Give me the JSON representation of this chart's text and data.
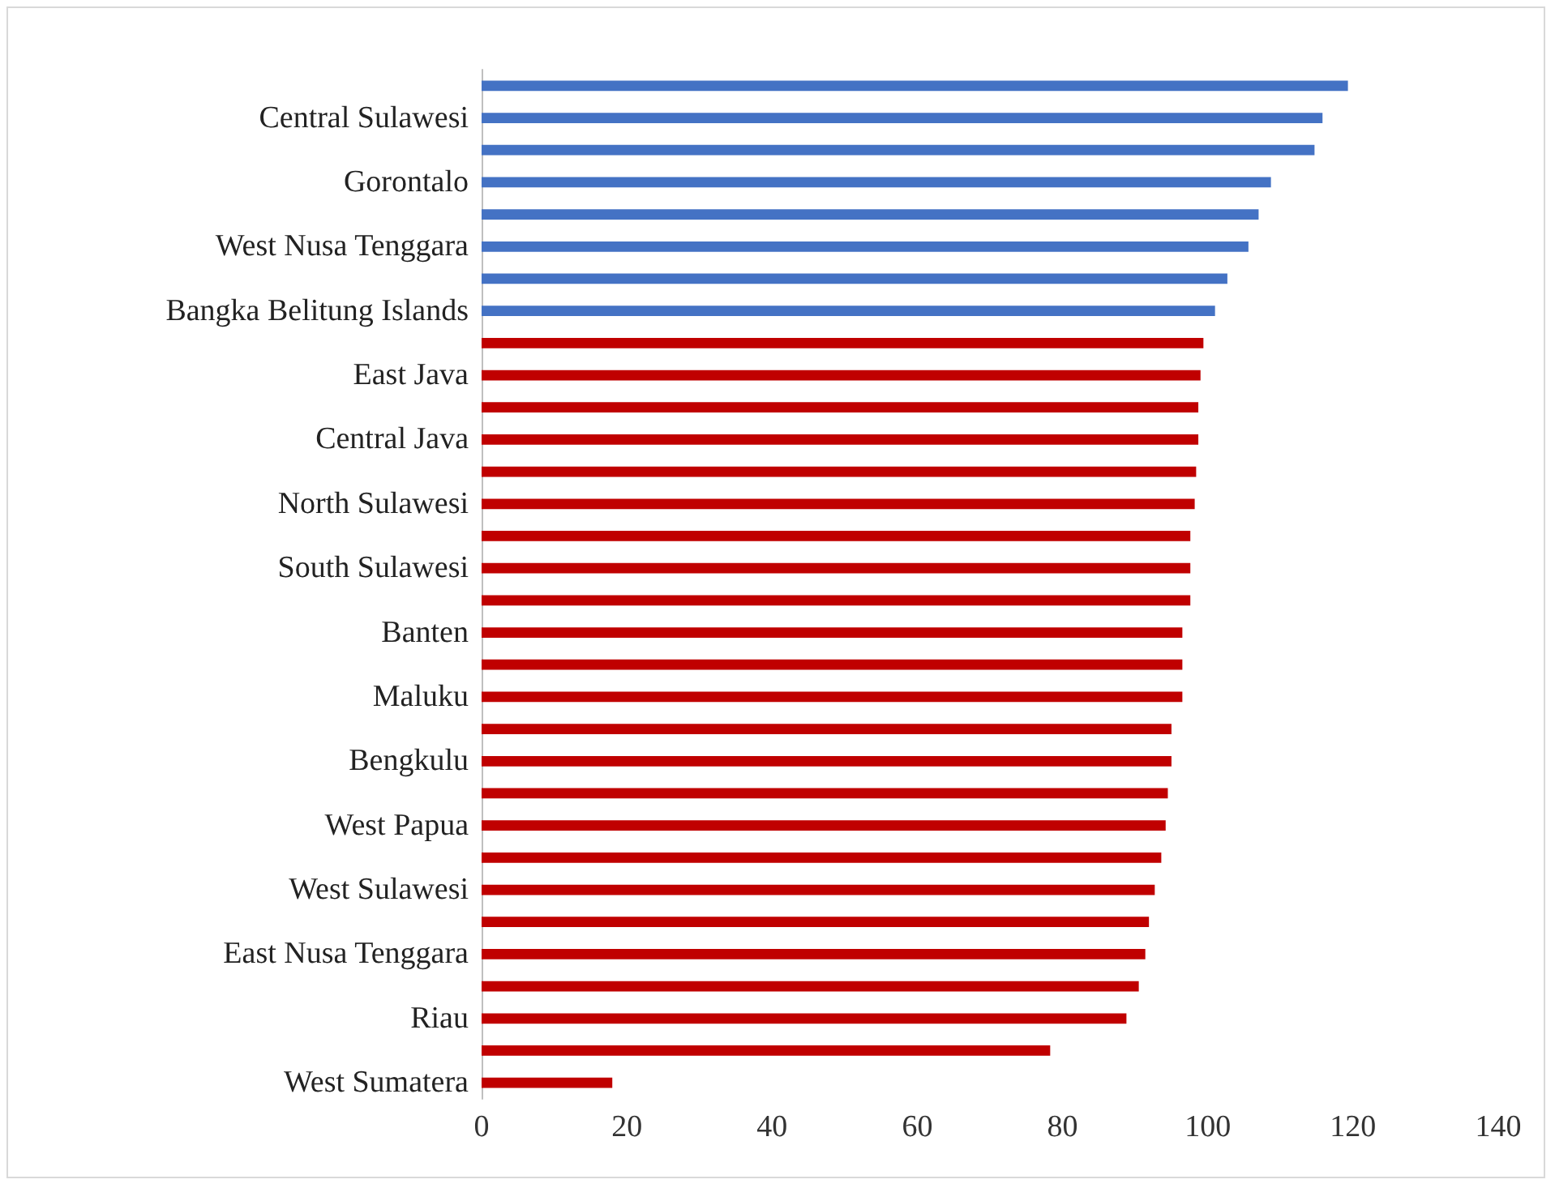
{
  "chart_data": {
    "type": "bar",
    "orientation": "horizontal",
    "categories": [
      null,
      "Central Sulawesi",
      null,
      "Gorontalo",
      null,
      "West Nusa Tenggara",
      null,
      "Bangka Belitung Islands",
      null,
      "East Java",
      null,
      "Central Java",
      null,
      "North Sulawesi",
      null,
      "South Sulawesi",
      null,
      "Banten",
      null,
      "Maluku",
      null,
      "Bengkulu",
      null,
      "West Papua",
      null,
      "West Sulawesi",
      null,
      "East Nusa Tenggara",
      null,
      "Riau",
      null,
      "West Sumatera"
    ],
    "values": [
      119.3,
      115.8,
      114.7,
      108.7,
      107.0,
      105.6,
      102.7,
      101.0,
      99.4,
      99.0,
      98.7,
      98.7,
      98.4,
      98.2,
      97.6,
      97.6,
      97.6,
      96.5,
      96.5,
      96.5,
      95.0,
      95.0,
      94.5,
      94.2,
      93.6,
      92.7,
      91.9,
      91.4,
      90.5,
      88.8,
      78.3,
      18.0
    ],
    "colors": [
      "#4472c4",
      "#4472c4",
      "#4472c4",
      "#4472c4",
      "#4472c4",
      "#4472c4",
      "#4472c4",
      "#4472c4",
      "#c00000",
      "#c00000",
      "#c00000",
      "#c00000",
      "#c00000",
      "#c00000",
      "#c00000",
      "#c00000",
      "#c00000",
      "#c00000",
      "#c00000",
      "#c00000",
      "#c00000",
      "#c00000",
      "#c00000",
      "#c00000",
      "#c00000",
      "#c00000",
      "#c00000",
      "#c00000",
      "#c00000",
      "#c00000",
      "#c00000",
      "#c00000"
    ],
    "xlim": [
      0,
      140
    ],
    "xticks": [
      0,
      20,
      40,
      60,
      80,
      100,
      120,
      140
    ]
  }
}
